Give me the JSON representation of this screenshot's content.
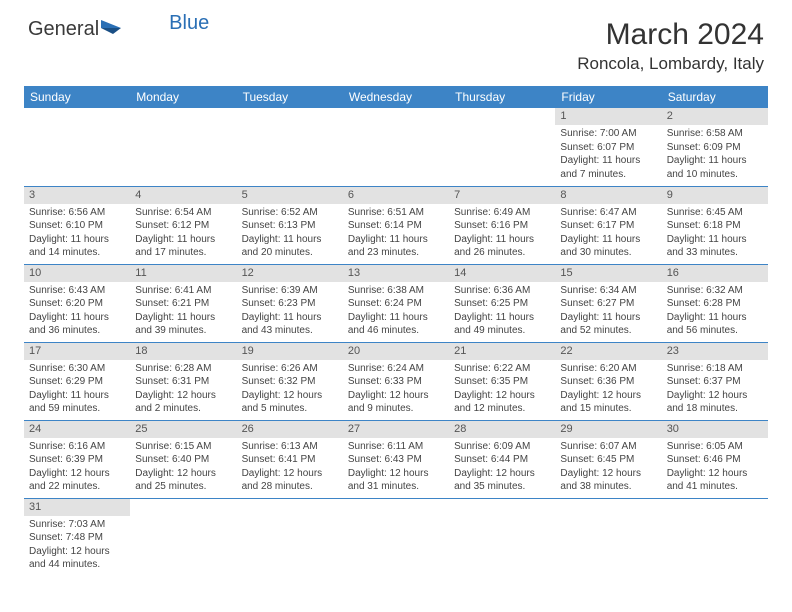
{
  "logo": {
    "text1": "General",
    "text2": "Blue"
  },
  "title": "March 2024",
  "location": "Roncola, Lombardy, Italy",
  "colors": {
    "header_bg": "#3d84c6",
    "header_text": "#ffffff",
    "daynum_bg": "#e2e2e2",
    "row_border": "#3d84c6",
    "logo_blue": "#2a6fb5"
  },
  "weekdays": [
    "Sunday",
    "Monday",
    "Tuesday",
    "Wednesday",
    "Thursday",
    "Friday",
    "Saturday"
  ],
  "weeks": [
    [
      null,
      null,
      null,
      null,
      null,
      {
        "n": "1",
        "sr": "7:00 AM",
        "ss": "6:07 PM",
        "dh": "11",
        "dm": "7"
      },
      {
        "n": "2",
        "sr": "6:58 AM",
        "ss": "6:09 PM",
        "dh": "11",
        "dm": "10"
      }
    ],
    [
      {
        "n": "3",
        "sr": "6:56 AM",
        "ss": "6:10 PM",
        "dh": "11",
        "dm": "14"
      },
      {
        "n": "4",
        "sr": "6:54 AM",
        "ss": "6:12 PM",
        "dh": "11",
        "dm": "17"
      },
      {
        "n": "5",
        "sr": "6:52 AM",
        "ss": "6:13 PM",
        "dh": "11",
        "dm": "20"
      },
      {
        "n": "6",
        "sr": "6:51 AM",
        "ss": "6:14 PM",
        "dh": "11",
        "dm": "23"
      },
      {
        "n": "7",
        "sr": "6:49 AM",
        "ss": "6:16 PM",
        "dh": "11",
        "dm": "26"
      },
      {
        "n": "8",
        "sr": "6:47 AM",
        "ss": "6:17 PM",
        "dh": "11",
        "dm": "30"
      },
      {
        "n": "9",
        "sr": "6:45 AM",
        "ss": "6:18 PM",
        "dh": "11",
        "dm": "33"
      }
    ],
    [
      {
        "n": "10",
        "sr": "6:43 AM",
        "ss": "6:20 PM",
        "dh": "11",
        "dm": "36"
      },
      {
        "n": "11",
        "sr": "6:41 AM",
        "ss": "6:21 PM",
        "dh": "11",
        "dm": "39"
      },
      {
        "n": "12",
        "sr": "6:39 AM",
        "ss": "6:23 PM",
        "dh": "11",
        "dm": "43"
      },
      {
        "n": "13",
        "sr": "6:38 AM",
        "ss": "6:24 PM",
        "dh": "11",
        "dm": "46"
      },
      {
        "n": "14",
        "sr": "6:36 AM",
        "ss": "6:25 PM",
        "dh": "11",
        "dm": "49"
      },
      {
        "n": "15",
        "sr": "6:34 AM",
        "ss": "6:27 PM",
        "dh": "11",
        "dm": "52"
      },
      {
        "n": "16",
        "sr": "6:32 AM",
        "ss": "6:28 PM",
        "dh": "11",
        "dm": "56"
      }
    ],
    [
      {
        "n": "17",
        "sr": "6:30 AM",
        "ss": "6:29 PM",
        "dh": "11",
        "dm": "59"
      },
      {
        "n": "18",
        "sr": "6:28 AM",
        "ss": "6:31 PM",
        "dh": "12",
        "dm": "2"
      },
      {
        "n": "19",
        "sr": "6:26 AM",
        "ss": "6:32 PM",
        "dh": "12",
        "dm": "5"
      },
      {
        "n": "20",
        "sr": "6:24 AM",
        "ss": "6:33 PM",
        "dh": "12",
        "dm": "9"
      },
      {
        "n": "21",
        "sr": "6:22 AM",
        "ss": "6:35 PM",
        "dh": "12",
        "dm": "12"
      },
      {
        "n": "22",
        "sr": "6:20 AM",
        "ss": "6:36 PM",
        "dh": "12",
        "dm": "15"
      },
      {
        "n": "23",
        "sr": "6:18 AM",
        "ss": "6:37 PM",
        "dh": "12",
        "dm": "18"
      }
    ],
    [
      {
        "n": "24",
        "sr": "6:16 AM",
        "ss": "6:39 PM",
        "dh": "12",
        "dm": "22"
      },
      {
        "n": "25",
        "sr": "6:15 AM",
        "ss": "6:40 PM",
        "dh": "12",
        "dm": "25"
      },
      {
        "n": "26",
        "sr": "6:13 AM",
        "ss": "6:41 PM",
        "dh": "12",
        "dm": "28"
      },
      {
        "n": "27",
        "sr": "6:11 AM",
        "ss": "6:43 PM",
        "dh": "12",
        "dm": "31"
      },
      {
        "n": "28",
        "sr": "6:09 AM",
        "ss": "6:44 PM",
        "dh": "12",
        "dm": "35"
      },
      {
        "n": "29",
        "sr": "6:07 AM",
        "ss": "6:45 PM",
        "dh": "12",
        "dm": "38"
      },
      {
        "n": "30",
        "sr": "6:05 AM",
        "ss": "6:46 PM",
        "dh": "12",
        "dm": "41"
      }
    ],
    [
      {
        "n": "31",
        "sr": "7:03 AM",
        "ss": "7:48 PM",
        "dh": "12",
        "dm": "44"
      },
      null,
      null,
      null,
      null,
      null,
      null
    ]
  ]
}
